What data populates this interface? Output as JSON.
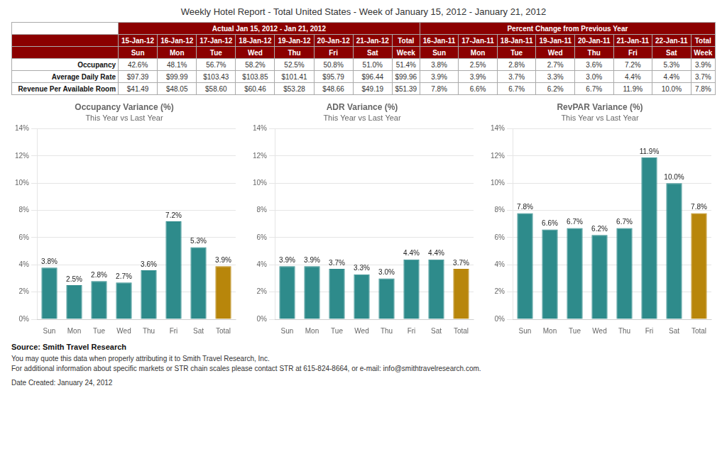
{
  "title": "Weekly Hotel Report - Total United States - Week of January 15, 2012 - January 21, 2012",
  "table": {
    "header_color": "#8B0000",
    "header_text_color": "#FFFFFF",
    "actual_header1": "Actual Jan 15, 2012 - Jan 21, 2012",
    "pct_header1": "Percent Change from Previous Year",
    "actual_dates": [
      "15-Jan-12",
      "16-Jan-12",
      "17-Jan-12",
      "18-Jan-12",
      "19-Jan-12",
      "20-Jan-12",
      "21-Jan-12",
      "Total"
    ],
    "actual_days": [
      "Sun",
      "Mon",
      "Tue",
      "Wed",
      "Thu",
      "Fri",
      "Sat",
      "Week"
    ],
    "pct_dates": [
      "16-Jan-11",
      "17-Jan-11",
      "18-Jan-11",
      "19-Jan-11",
      "20-Jan-11",
      "21-Jan-11",
      "22-Jan-11",
      "Total"
    ],
    "pct_days": [
      "Sun",
      "Mon",
      "Tue",
      "Wed",
      "Thu",
      "Fri",
      "Sat",
      "Week"
    ],
    "row_labels": [
      "Occupancy",
      "Average Daily Rate",
      "Revenue Per Available Room"
    ],
    "actual_values": [
      [
        "42.6%",
        "48.1%",
        "56.7%",
        "58.2%",
        "52.5%",
        "50.8%",
        "51.0%",
        "51.4%"
      ],
      [
        "$97.39",
        "$99.99",
        "$103.43",
        "$103.85",
        "$101.41",
        "$95.79",
        "$96.44",
        "$99.96"
      ],
      [
        "$41.49",
        "$48.05",
        "$58.60",
        "$60.46",
        "$53.28",
        "$48.66",
        "$49.19",
        "$51.39"
      ]
    ],
    "pct_values": [
      [
        "3.8%",
        "2.5%",
        "2.8%",
        "2.7%",
        "3.6%",
        "7.2%",
        "5.3%",
        "3.9%"
      ],
      [
        "3.9%",
        "3.9%",
        "3.7%",
        "3.3%",
        "3.0%",
        "4.4%",
        "4.4%",
        "3.7%"
      ],
      [
        "7.8%",
        "6.6%",
        "6.7%",
        "6.2%",
        "6.7%",
        "11.9%",
        "10.0%",
        "7.8%"
      ]
    ]
  },
  "chart_data": [
    {
      "type": "bar",
      "title": "Occupancy Variance (%)",
      "subtitle": "This Year vs Last Year",
      "categories": [
        "Sun",
        "Mon",
        "Tue",
        "Wed",
        "Thu",
        "Fri",
        "Sat",
        "Total"
      ],
      "values": [
        3.8,
        2.5,
        2.8,
        2.7,
        3.6,
        7.2,
        5.3,
        3.9
      ],
      "value_labels": [
        "3.8%",
        "2.5%",
        "2.8%",
        "2.7%",
        "3.6%",
        "7.2%",
        "5.3%",
        "3.9%"
      ],
      "colors": [
        "#2E8B8B",
        "#2E8B8B",
        "#2E8B8B",
        "#2E8B8B",
        "#2E8B8B",
        "#2E8B8B",
        "#2E8B8B",
        "#B8860B"
      ],
      "data_labels": true,
      "ylim": [
        0,
        14
      ],
      "yticks": [
        {
          "value": 0,
          "label": "0%"
        },
        {
          "value": 2,
          "label": "2%"
        },
        {
          "value": 4,
          "label": "4%"
        },
        {
          "value": 6,
          "label": "6%"
        },
        {
          "value": 8,
          "label": "8%"
        },
        {
          "value": 10,
          "label": "10%"
        },
        {
          "value": 12,
          "label": "12%"
        },
        {
          "value": 14,
          "label": "14%"
        }
      ],
      "grid": true
    },
    {
      "type": "bar",
      "title": "ADR Variance (%)",
      "subtitle": "This Year vs Last Year",
      "categories": [
        "Sun",
        "Mon",
        "Tue",
        "Wed",
        "Thu",
        "Fri",
        "Sat",
        "Total"
      ],
      "values": [
        3.9,
        3.9,
        3.7,
        3.3,
        3.0,
        4.4,
        4.4,
        3.7
      ],
      "value_labels": [
        "3.9%",
        "3.9%",
        "3.7%",
        "3.3%",
        "3.0%",
        "4.4%",
        "4.4%",
        "3.7%"
      ],
      "colors": [
        "#2E8B8B",
        "#2E8B8B",
        "#2E8B8B",
        "#2E8B8B",
        "#2E8B8B",
        "#2E8B8B",
        "#2E8B8B",
        "#B8860B"
      ],
      "data_labels": true,
      "ylim": [
        0,
        14
      ],
      "yticks": [
        {
          "value": 0,
          "label": "0%"
        },
        {
          "value": 2,
          "label": "2%"
        },
        {
          "value": 4,
          "label": "4%"
        },
        {
          "value": 6,
          "label": "6%"
        },
        {
          "value": 8,
          "label": "8%"
        },
        {
          "value": 10,
          "label": "10%"
        },
        {
          "value": 12,
          "label": "12%"
        },
        {
          "value": 14,
          "label": "14%"
        }
      ],
      "grid": true
    },
    {
      "type": "bar",
      "title": "RevPAR Variance (%)",
      "subtitle": "This Year vs Last Year",
      "categories": [
        "Sun",
        "Mon",
        "Tue",
        "Wed",
        "Thu",
        "Fri",
        "Sat",
        "Total"
      ],
      "values": [
        7.8,
        6.6,
        6.7,
        6.2,
        6.7,
        11.9,
        10.0,
        7.8
      ],
      "value_labels": [
        "7.8%",
        "6.6%",
        "6.7%",
        "6.2%",
        "6.7%",
        "11.9%",
        "10.0%",
        "7.8%"
      ],
      "colors": [
        "#2E8B8B",
        "#2E8B8B",
        "#2E8B8B",
        "#2E8B8B",
        "#2E8B8B",
        "#2E8B8B",
        "#2E8B8B",
        "#B8860B"
      ],
      "data_labels": true,
      "ylim": [
        0,
        14
      ],
      "yticks": [
        {
          "value": 0,
          "label": "0%"
        },
        {
          "value": 2,
          "label": "2%"
        },
        {
          "value": 4,
          "label": "4%"
        },
        {
          "value": 6,
          "label": "6%"
        },
        {
          "value": 8,
          "label": "8%"
        },
        {
          "value": 10,
          "label": "10%"
        },
        {
          "value": 12,
          "label": "12%"
        },
        {
          "value": 14,
          "label": "14%"
        }
      ],
      "grid": true
    }
  ],
  "footer": {
    "source": "Source: Smith Travel Research",
    "lines": [
      "You may quote this data when properly attributing it to Smith Travel Research, Inc.",
      "For additional information about specific markets or STR chain scales please contact STR at 615-824-8664, or e-mail: info@smithtravelresearch.com."
    ],
    "date": "Date Created: January 24, 2012"
  }
}
